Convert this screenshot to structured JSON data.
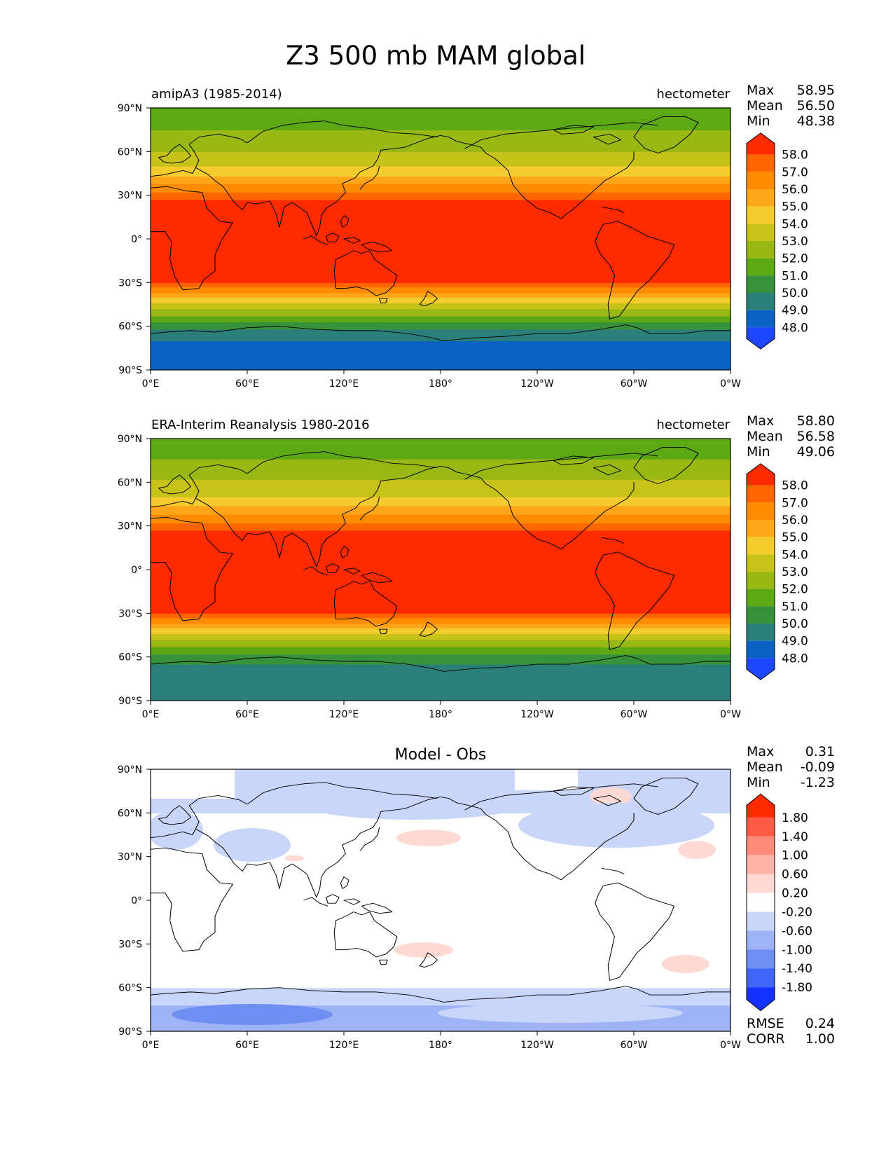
{
  "title": "Z3 500 mb MAM global",
  "lat_labels": [
    "90°N",
    "60°N",
    "30°N",
    "0°",
    "30°S",
    "60°S",
    "90°S"
  ],
  "lon_labels": [
    "0°E",
    "60°E",
    "120°E",
    "180°",
    "120°W",
    "60°W",
    "0°W"
  ],
  "stat_labels": {
    "max": "Max",
    "mean": "Mean",
    "min": "Min",
    "rmse": "RMSE",
    "corr": "CORR"
  },
  "panels": [
    {
      "left_title": "amipA3 (1985-2014)",
      "right_title": "hectometer",
      "center_title": "",
      "stats": {
        "max": "58.95",
        "mean": "56.50",
        "min": "48.38"
      },
      "colorbar": {
        "labels": [
          "58.0",
          "57.0",
          "56.0",
          "55.0",
          "54.0",
          "53.0",
          "52.0",
          "51.0",
          "50.0",
          "49.0",
          "48.0"
        ],
        "colors": [
          "#ff2a00",
          "#ff6600",
          "#ff8c00",
          "#ffa61a",
          "#f5cc2e",
          "#c7c21a",
          "#99b814",
          "#5ca815",
          "#38923c",
          "#2a7f7a",
          "#0a63c4",
          "#1f46ff"
        ]
      },
      "field": {
        "bands": [
          {
            "lat": [
              -90,
              -70
            ],
            "level": "48-49"
          },
          {
            "lat": [
              -70,
              -62
            ],
            "level": "49-50"
          },
          {
            "lat": [
              -62,
              -57
            ],
            "level": "50-51"
          },
          {
            "lat": [
              -57,
              -53
            ],
            "level": "51-52"
          },
          {
            "lat": [
              -53,
              -48
            ],
            "level": "52-53"
          },
          {
            "lat": [
              -48,
              -44
            ],
            "level": "53-54"
          },
          {
            "lat": [
              -44,
              -40
            ],
            "level": "54-55"
          },
          {
            "lat": [
              -40,
              -37
            ],
            "level": "55-56"
          },
          {
            "lat": [
              -37,
              -33
            ],
            "level": "56-57"
          },
          {
            "lat": [
              -33,
              -30
            ],
            "level": "57-58"
          },
          {
            "lat": [
              -30,
              27
            ],
            "level": ">58"
          },
          {
            "lat": [
              27,
              32
            ],
            "level": "57-58"
          },
          {
            "lat": [
              32,
              38
            ],
            "level": "56-57"
          },
          {
            "lat": [
              38,
              43
            ],
            "level": "55-56"
          },
          {
            "lat": [
              43,
              50
            ],
            "level": "54-55"
          },
          {
            "lat": [
              50,
              60
            ],
            "level": "53-54"
          },
          {
            "lat": [
              60,
              75
            ],
            "level": "52-53"
          },
          {
            "lat": [
              75,
              90
            ],
            "level": "51-52"
          }
        ]
      }
    },
    {
      "left_title": "ERA-Interim Reanalysis 1980-2016",
      "right_title": "hectometer",
      "center_title": "",
      "stats": {
        "max": "58.80",
        "mean": "56.58",
        "min": "49.06"
      },
      "colorbar": {
        "labels": [
          "58.0",
          "57.0",
          "56.0",
          "55.0",
          "54.0",
          "53.0",
          "52.0",
          "51.0",
          "50.0",
          "49.0",
          "48.0"
        ],
        "colors": [
          "#ff2a00",
          "#ff6600",
          "#ff8c00",
          "#ffa61a",
          "#f5cc2e",
          "#c7c21a",
          "#99b814",
          "#5ca815",
          "#38923c",
          "#2a7f7a",
          "#0a63c4",
          "#1f46ff"
        ]
      },
      "field": {
        "bands": [
          {
            "lat": [
              -90,
              -65
            ],
            "level": "49-50"
          },
          {
            "lat": [
              -65,
              -58
            ],
            "level": "50-51"
          },
          {
            "lat": [
              -58,
              -53
            ],
            "level": "51-52"
          },
          {
            "lat": [
              -53,
              -48
            ],
            "level": "52-53"
          },
          {
            "lat": [
              -48,
              -44
            ],
            "level": "53-54"
          },
          {
            "lat": [
              -44,
              -40
            ],
            "level": "54-55"
          },
          {
            "lat": [
              -40,
              -37
            ],
            "level": "55-56"
          },
          {
            "lat": [
              -37,
              -33
            ],
            "level": "56-57"
          },
          {
            "lat": [
              -33,
              -30
            ],
            "level": "57-58"
          },
          {
            "lat": [
              -30,
              27
            ],
            "level": ">58"
          },
          {
            "lat": [
              27,
              32
            ],
            "level": "57-58"
          },
          {
            "lat": [
              32,
              38
            ],
            "level": "56-57"
          },
          {
            "lat": [
              38,
              44
            ],
            "level": "55-56"
          },
          {
            "lat": [
              44,
              50
            ],
            "level": "54-55"
          },
          {
            "lat": [
              50,
              62
            ],
            "level": "53-54"
          },
          {
            "lat": [
              62,
              76
            ],
            "level": "52-53"
          },
          {
            "lat": [
              76,
              90
            ],
            "level": "51-52"
          }
        ]
      }
    },
    {
      "left_title": "",
      "right_title": "",
      "center_title": "Model - Obs",
      "stats": {
        "max": "0.31",
        "mean": "-0.09",
        "min": "-1.23"
      },
      "metrics": {
        "rmse": "0.24",
        "corr": "1.00"
      },
      "colorbar": {
        "labels": [
          "1.80",
          "1.40",
          "1.00",
          "0.60",
          "0.20",
          "-0.20",
          "-0.60",
          "-1.00",
          "-1.40",
          "-1.80"
        ],
        "colors": [
          "#ff2a00",
          "#ff5a45",
          "#ff8a7a",
          "#ffb3a8",
          "#ffd9d3",
          "#ffffff",
          "#c9d6f9",
          "#9db3f5",
          "#6f8ef2",
          "#4065f7",
          "#1432ff"
        ]
      },
      "field": {
        "bands": [
          {
            "lat": [
              -90,
              -72
            ],
            "level": "-0.6 to -1.0"
          },
          {
            "lat": [
              -72,
              -60
            ],
            "level": "-0.2 to -0.6"
          },
          {
            "lat": [
              -60,
              60
            ],
            "level": "-0.2 to 0.2"
          },
          {
            "lat": [
              60,
              90
            ],
            "level": "-0.2 to -0.6"
          }
        ]
      }
    }
  ]
}
